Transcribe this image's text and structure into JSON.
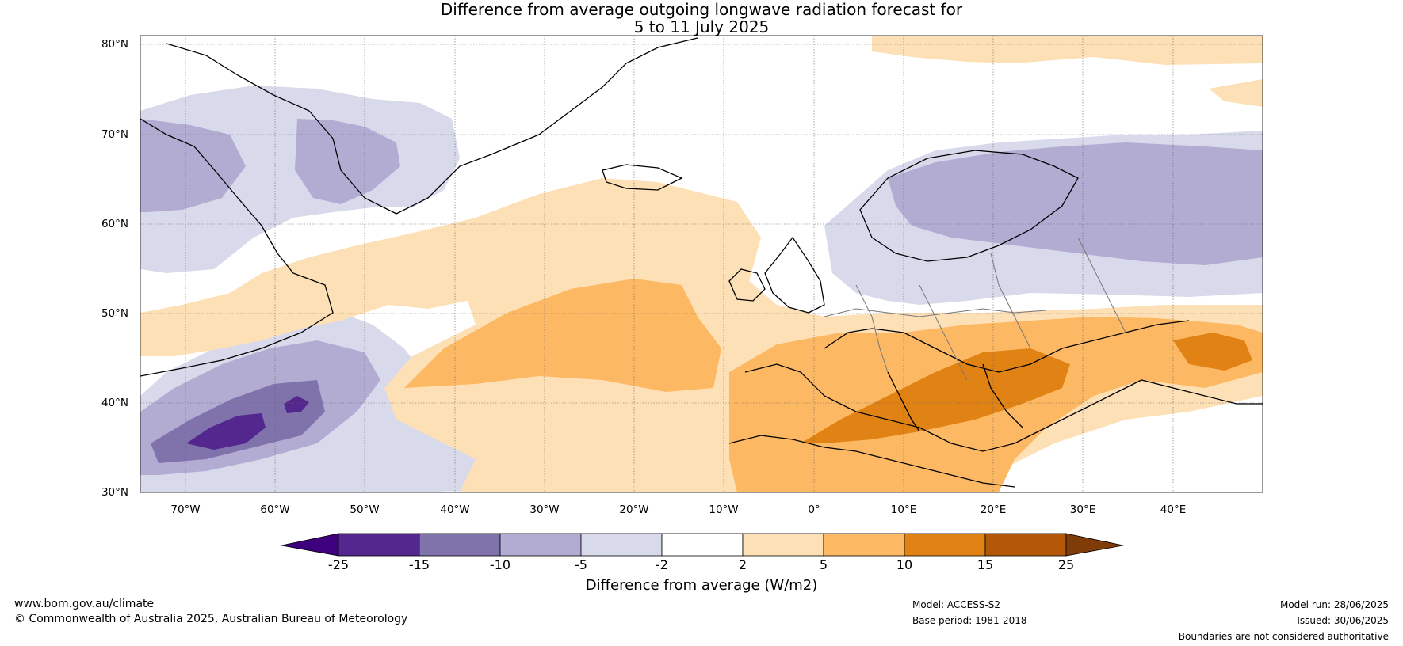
{
  "title": {
    "line1": "Difference from average outgoing longwave radiation forecast for",
    "line2": "5 to 11 July 2025"
  },
  "map": {
    "lat_labels": [
      "80°N",
      "70°N",
      "60°N",
      "50°N",
      "40°N",
      "30°N"
    ],
    "lon_labels": [
      "70°W",
      "60°W",
      "50°W",
      "40°W",
      "30°W",
      "20°W",
      "10°W",
      "0°",
      "10°E",
      "20°E",
      "30°E",
      "40°E"
    ],
    "lat_range": [
      30,
      81
    ],
    "lon_range": [
      -75,
      50
    ]
  },
  "colorbar": {
    "label": "Difference from average (W/m2)",
    "ticks": [
      "-25",
      "-15",
      "-10",
      "-5",
      "-2",
      "2",
      "5",
      "10",
      "15",
      "25"
    ],
    "colors": [
      "#3f007d",
      "#54278f",
      "#8073ac",
      "#b2abd2",
      "#d8daeb",
      "#ffffff",
      "#fee0b6",
      "#fdb863",
      "#e08214",
      "#b35806",
      "#7f3b08"
    ]
  },
  "footer": {
    "website": "www.bom.gov.au/climate",
    "copyright": "© Commonwealth of Australia 2025, Australian Bureau of Meteorology",
    "model": "Model: ACCESS-S2",
    "base_period": "Base period: 1981-2018",
    "model_run": "Model run: 28/06/2025",
    "issued": "Issued: 30/06/2025",
    "disclaimer": "Boundaries are not considered authoritative"
  }
}
